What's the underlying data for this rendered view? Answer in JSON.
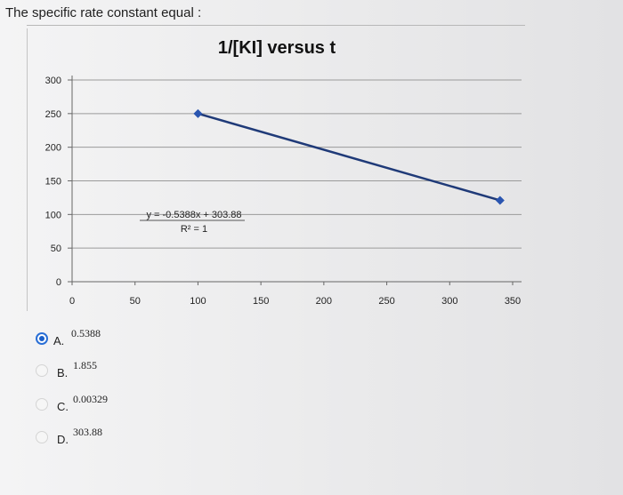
{
  "question": {
    "text": "The specific rate constant equal :"
  },
  "chart_data": {
    "type": "line",
    "title": "1/[KI] versus t",
    "xlabel": "",
    "ylabel": "",
    "x_ticks": [
      "0",
      "50",
      "100",
      "150",
      "200",
      "250",
      "300",
      "350"
    ],
    "y_ticks": [
      "0",
      "50",
      "100",
      "150",
      "200",
      "250",
      "300"
    ],
    "xlim": [
      0,
      350
    ],
    "ylim": [
      0,
      300
    ],
    "grid": "horizontal",
    "series": [
      {
        "color": "#1f3a78",
        "x": [
          100,
          340
        ],
        "y": [
          250,
          121
        ]
      }
    ],
    "trendline": {
      "equation": "y = -0.5388x + 303.88",
      "r_squared": "R² = 1"
    }
  },
  "options": [
    {
      "letter": "A.",
      "value": "0.5388",
      "selected": true
    },
    {
      "letter": "B.",
      "value": "1.855",
      "selected": false
    },
    {
      "letter": "C.",
      "value": "0.00329",
      "selected": false
    },
    {
      "letter": "D.",
      "value": "303.88",
      "selected": false
    }
  ]
}
